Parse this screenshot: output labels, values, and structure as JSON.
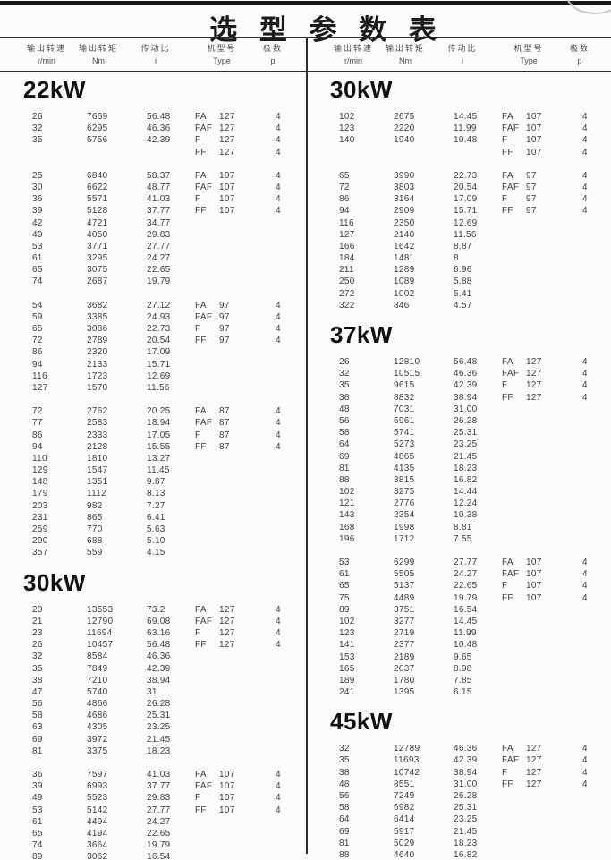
{
  "title": "选 型 参 数 表",
  "colors": {
    "background": "#fcfcfc",
    "text": "#3d3d3d",
    "heading": "#101010",
    "line": "#2b2b2b"
  },
  "header": {
    "cols": [
      {
        "cn": "输出转速",
        "unit": "r/min"
      },
      {
        "cn": "输出转矩",
        "unit": "Nm"
      },
      {
        "cn": "传动比",
        "unit": "i"
      },
      {
        "cn": "机型号",
        "unit": "Type"
      },
      {
        "cn": "极数",
        "unit": "p"
      }
    ]
  },
  "columns": {
    "left": {
      "sections": [
        {
          "power": "22kW",
          "blocks": [
            [
              [
                "26",
                "7669",
                "56.48",
                "FA",
                "127",
                "4"
              ],
              [
                "32",
                "6295",
                "46.36",
                "FAF",
                "127",
                "4"
              ],
              [
                "35",
                "5756",
                "42.39",
                "F",
                "127",
                "4"
              ],
              [
                "",
                "",
                "",
                "FF",
                "127",
                "4"
              ]
            ],
            [
              [
                "25",
                "6840",
                "58.37",
                "FA",
                "107",
                "4"
              ],
              [
                "30",
                "6622",
                "48.77",
                "FAF",
                "107",
                "4"
              ],
              [
                "36",
                "5571",
                "41.03",
                "F",
                "107",
                "4"
              ],
              [
                "39",
                "5128",
                "37.77",
                "FF",
                "107",
                "4"
              ],
              [
                "42",
                "4721",
                "34.77",
                "",
                "",
                ""
              ],
              [
                "49",
                "4050",
                "29.83",
                "",
                "",
                ""
              ],
              [
                "53",
                "3771",
                "27.77",
                "",
                "",
                ""
              ],
              [
                "61",
                "3295",
                "24.27",
                "",
                "",
                ""
              ],
              [
                "65",
                "3075",
                "22.65",
                "",
                "",
                ""
              ],
              [
                "74",
                "2687",
                "19.79",
                "",
                "",
                ""
              ]
            ],
            [
              [
                "54",
                "3682",
                "27.12",
                "FA",
                "97",
                "4"
              ],
              [
                "59",
                "3385",
                "24.93",
                "FAF",
                "97",
                "4"
              ],
              [
                "65",
                "3086",
                "22.73",
                "F",
                "97",
                "4"
              ],
              [
                "72",
                "2789",
                "20.54",
                "FF",
                "97",
                "4"
              ],
              [
                "86",
                "2320",
                "17.09",
                "",
                "",
                ""
              ],
              [
                "94",
                "2133",
                "15.71",
                "",
                "",
                ""
              ],
              [
                "116",
                "1723",
                "12.69",
                "",
                "",
                ""
              ],
              [
                "127",
                "1570",
                "11.56",
                "",
                "",
                ""
              ]
            ],
            [
              [
                "72",
                "2762",
                "20.25",
                "FA",
                "87",
                "4"
              ],
              [
                "77",
                "2583",
                "18.94",
                "FAF",
                "87",
                "4"
              ],
              [
                "86",
                "2333",
                "17.05",
                "F",
                "87",
                "4"
              ],
              [
                "94",
                "2128",
                "15.55",
                "FF",
                "87",
                "4"
              ],
              [
                "110",
                "1810",
                "13.27",
                "",
                "",
                ""
              ],
              [
                "129",
                "1547",
                "11.45",
                "",
                "",
                ""
              ],
              [
                "148",
                "1351",
                "9.87",
                "",
                "",
                ""
              ],
              [
                "179",
                "1112",
                "8.13",
                "",
                "",
                ""
              ],
              [
                "203",
                "982",
                "7.27",
                "",
                "",
                ""
              ],
              [
                "231",
                "865",
                "6.41",
                "",
                "",
                ""
              ],
              [
                "259",
                "770",
                "5.63",
                "",
                "",
                ""
              ],
              [
                "290",
                "688",
                "5.10",
                "",
                "",
                ""
              ],
              [
                "357",
                "559",
                "4.15",
                "",
                "",
                ""
              ]
            ]
          ]
        },
        {
          "power": "30kW",
          "blocks": [
            [
              [
                "20",
                "13553",
                "73.2",
                "FA",
                "127",
                "4"
              ],
              [
                "21",
                "12790",
                "69.08",
                "FAF",
                "127",
                "4"
              ],
              [
                "23",
                "11694",
                "63.16",
                "F",
                "127",
                "4"
              ],
              [
                "26",
                "10457",
                "56.48",
                "FF",
                "127",
                "4"
              ],
              [
                "32",
                "8584",
                "46.36",
                "",
                "",
                ""
              ],
              [
                "35",
                "7849",
                "42.39",
                "",
                "",
                ""
              ],
              [
                "38",
                "7210",
                "38.94",
                "",
                "",
                ""
              ],
              [
                "47",
                "5740",
                "31",
                "",
                "",
                ""
              ],
              [
                "56",
                "4866",
                "26.28",
                "",
                "",
                ""
              ],
              [
                "58",
                "4686",
                "25.31",
                "",
                "",
                ""
              ],
              [
                "63",
                "4305",
                "23.25",
                "",
                "",
                ""
              ],
              [
                "69",
                "3972",
                "21.45",
                "",
                "",
                ""
              ],
              [
                "81",
                "3375",
                "18.23",
                "",
                "",
                ""
              ]
            ],
            [
              [
                "36",
                "7597",
                "41.03",
                "FA",
                "107",
                "4"
              ],
              [
                "39",
                "6993",
                "37.77",
                "FAF",
                "107",
                "4"
              ],
              [
                "49",
                "5523",
                "29.83",
                "F",
                "107",
                "4"
              ],
              [
                "53",
                "5142",
                "27.77",
                "FF",
                "107",
                "4"
              ],
              [
                "61",
                "4494",
                "24.27",
                "",
                "",
                ""
              ],
              [
                "65",
                "4194",
                "22.65",
                "",
                "",
                ""
              ],
              [
                "74",
                "3664",
                "19.79",
                "",
                "",
                ""
              ],
              [
                "89",
                "3062",
                "16.54",
                "",
                "",
                ""
              ]
            ]
          ]
        }
      ]
    },
    "right": {
      "sections": [
        {
          "power": "30kW",
          "blocks": [
            [
              [
                "102",
                "2675",
                "14.45",
                "FA",
                "107",
                "4"
              ],
              [
                "123",
                "2220",
                "11.99",
                "FAF",
                "107",
                "4"
              ],
              [
                "140",
                "1940",
                "10.48",
                "F",
                "107",
                "4"
              ],
              [
                "",
                "",
                "",
                "FF",
                "107",
                "4"
              ]
            ],
            [
              [
                "65",
                "3990",
                "22.73",
                "FA",
                "97",
                "4"
              ],
              [
                "72",
                "3803",
                "20.54",
                "FAF",
                "97",
                "4"
              ],
              [
                "86",
                "3164",
                "17.09",
                "F",
                "97",
                "4"
              ],
              [
                "94",
                "2909",
                "15.71",
                "FF",
                "97",
                "4"
              ],
              [
                "116",
                "2350",
                "12.69",
                "",
                "",
                ""
              ],
              [
                "127",
                "2140",
                "11.56",
                "",
                "",
                ""
              ],
              [
                "166",
                "1642",
                "8.87",
                "",
                "",
                ""
              ],
              [
                "184",
                "1481",
                "8",
                "",
                "",
                ""
              ],
              [
                "211",
                "1289",
                "6.96",
                "",
                "",
                ""
              ],
              [
                "250",
                "1089",
                "5.88",
                "",
                "",
                ""
              ],
              [
                "272",
                "1002",
                "5.41",
                "",
                "",
                ""
              ],
              [
                "322",
                "846",
                "4.57",
                "",
                "",
                ""
              ]
            ]
          ]
        },
        {
          "power": "37kW",
          "blocks": [
            [
              [
                "26",
                "12810",
                "56.48",
                "FA",
                "127",
                "4"
              ],
              [
                "32",
                "10515",
                "46.36",
                "FAF",
                "127",
                "4"
              ],
              [
                "35",
                "9615",
                "42.39",
                "F",
                "127",
                "4"
              ],
              [
                "38",
                "8832",
                "38.94",
                "FF",
                "127",
                "4"
              ],
              [
                "48",
                "7031",
                "31.00",
                "",
                "",
                ""
              ],
              [
                "56",
                "5961",
                "26.28",
                "",
                "",
                ""
              ],
              [
                "58",
                "5741",
                "25.31",
                "",
                "",
                ""
              ],
              [
                "64",
                "5273",
                "23.25",
                "",
                "",
                ""
              ],
              [
                "69",
                "4865",
                "21.45",
                "",
                "",
                ""
              ],
              [
                "81",
                "4135",
                "18.23",
                "",
                "",
                ""
              ],
              [
                "88",
                "3815",
                "16.82",
                "",
                "",
                ""
              ],
              [
                "102",
                "3275",
                "14.44",
                "",
                "",
                ""
              ],
              [
                "121",
                "2776",
                "12.24",
                "",
                "",
                ""
              ],
              [
                "143",
                "2354",
                "10.38",
                "",
                "",
                ""
              ],
              [
                "168",
                "1998",
                "8.81",
                "",
                "",
                ""
              ],
              [
                "196",
                "1712",
                "7.55",
                "",
                "",
                ""
              ]
            ],
            [
              [
                "53",
                "6299",
                "27.77",
                "FA",
                "107",
                "4"
              ],
              [
                "61",
                "5505",
                "24.27",
                "FAF",
                "107",
                "4"
              ],
              [
                "65",
                "5137",
                "22.65",
                "F",
                "107",
                "4"
              ],
              [
                "75",
                "4489",
                "19.79",
                "FF",
                "107",
                "4"
              ],
              [
                "89",
                "3751",
                "16.54",
                "",
                "",
                ""
              ],
              [
                "102",
                "3277",
                "14.45",
                "",
                "",
                ""
              ],
              [
                "123",
                "2719",
                "11.99",
                "",
                "",
                ""
              ],
              [
                "141",
                "2377",
                "10.48",
                "",
                "",
                ""
              ],
              [
                "153",
                "2189",
                "9.65",
                "",
                "",
                ""
              ],
              [
                "165",
                "2037",
                "8.98",
                "",
                "",
                ""
              ],
              [
                "189",
                "1780",
                "7.85",
                "",
                "",
                ""
              ],
              [
                "241",
                "1395",
                "6.15",
                "",
                "",
                ""
              ]
            ]
          ]
        },
        {
          "power": "45kW",
          "blocks": [
            [
              [
                "32",
                "12789",
                "46.36",
                "FA",
                "127",
                "4"
              ],
              [
                "35",
                "11693",
                "42.39",
                "FAF",
                "127",
                "4"
              ],
              [
                "38",
                "10742",
                "38.94",
                "F",
                "127",
                "4"
              ],
              [
                "48",
                "8551",
                "31.00",
                "FF",
                "127",
                "4"
              ],
              [
                "56",
                "7249",
                "26.28",
                "",
                "",
                ""
              ],
              [
                "58",
                "6982",
                "25.31",
                "",
                "",
                ""
              ],
              [
                "64",
                "6414",
                "23.25",
                "",
                "",
                ""
              ],
              [
                "69",
                "5917",
                "21.45",
                "",
                "",
                ""
              ],
              [
                "81",
                "5029",
                "18.23",
                "",
                "",
                ""
              ],
              [
                "88",
                "4640",
                "16.82",
                "",
                "",
                ""
              ]
            ]
          ]
        }
      ]
    }
  }
}
